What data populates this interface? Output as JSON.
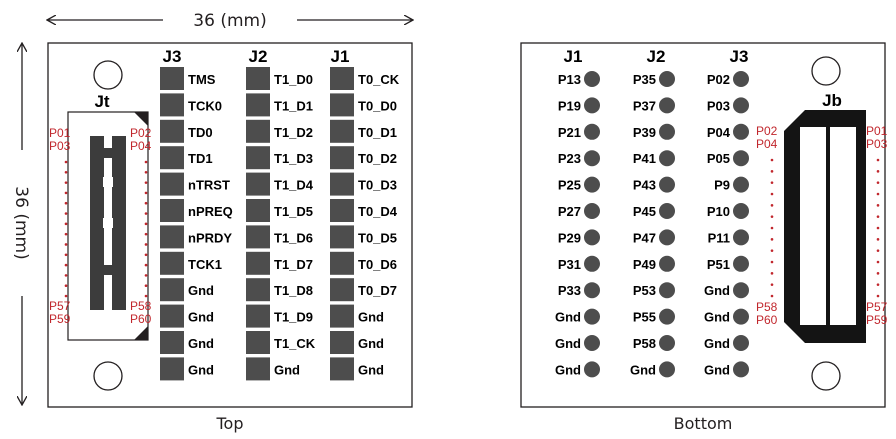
{
  "dimensions": {
    "width_label": "36 (mm)",
    "height_label": "36 (mm)"
  },
  "colors": {
    "pad": "#4d4d4d",
    "connector": "#141414",
    "pin_dot": "#c1272d",
    "outline": "#231f20"
  },
  "top": {
    "caption": "Top",
    "connector_label": "Jt",
    "headers": [
      "J3",
      "J2",
      "J1"
    ],
    "side_labels": [
      "P01",
      "P03",
      "P02",
      "P04",
      "P57",
      "P59",
      "P58",
      "P60"
    ],
    "columns": [
      [
        "TMS",
        "TCK0",
        "TD0",
        "TD1",
        "nTRST",
        "nPREQ",
        "nPRDY",
        "TCK1",
        "Gnd",
        "Gnd",
        "Gnd",
        "Gnd"
      ],
      [
        "T1_D0",
        "T1_D1",
        "T1_D2",
        "T1_D3",
        "T1_D4",
        "T1_D5",
        "T1_D6",
        "T1_D7",
        "T1_D8",
        "T1_D9",
        "T1_CK",
        "Gnd"
      ],
      [
        "T0_CK",
        "T0_D0",
        "T0_D1",
        "T0_D2",
        "T0_D3",
        "T0_D4",
        "T0_D5",
        "T0_D6",
        "T0_D7",
        "Gnd",
        "Gnd",
        "Gnd"
      ]
    ]
  },
  "bottom": {
    "caption": "Bottom",
    "connector_label": "Jb",
    "headers": [
      "J1",
      "J2",
      "J3"
    ],
    "side_labels": [
      "P02",
      "P04",
      "P58",
      "P60",
      "P01",
      "P03",
      "P57",
      "P59"
    ],
    "columns": [
      [
        "P13",
        "P19",
        "P21",
        "P23",
        "P25",
        "P27",
        "P29",
        "P31",
        "P33",
        "Gnd",
        "Gnd",
        "Gnd"
      ],
      [
        "P35",
        "P37",
        "P39",
        "P41",
        "P43",
        "P45",
        "P47",
        "P49",
        "P53",
        "P55",
        "P58",
        "Gnd"
      ],
      [
        "P02",
        "P03",
        "P04",
        "P05",
        "P9",
        "P10",
        "P11",
        "P51",
        "Gnd",
        "Gnd",
        "Gnd",
        "Gnd"
      ]
    ]
  }
}
